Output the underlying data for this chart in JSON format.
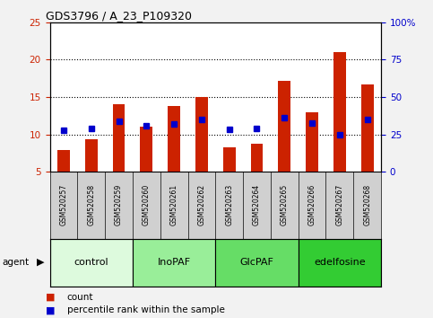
{
  "title": "GDS3796 / A_23_P109320",
  "samples": [
    "GSM520257",
    "GSM520258",
    "GSM520259",
    "GSM520260",
    "GSM520261",
    "GSM520262",
    "GSM520263",
    "GSM520264",
    "GSM520265",
    "GSM520266",
    "GSM520267",
    "GSM520268"
  ],
  "count_values": [
    7.9,
    9.4,
    14.0,
    11.0,
    13.8,
    15.0,
    8.3,
    8.7,
    17.2,
    12.9,
    21.0,
    16.7
  ],
  "percentile_values": [
    10.5,
    10.8,
    11.7,
    11.2,
    11.4,
    12.0,
    10.7,
    10.8,
    12.2,
    11.5,
    10.0,
    12.0
  ],
  "bar_bottom": 5.0,
  "ylim_left": [
    5,
    25
  ],
  "ylim_right": [
    0,
    100
  ],
  "yticks_left": [
    5,
    10,
    15,
    20,
    25
  ],
  "yticks_right": [
    0,
    25,
    50,
    75,
    100
  ],
  "ytick_labels_right": [
    "0",
    "25",
    "50",
    "75",
    "100%"
  ],
  "bar_color": "#cc2200",
  "dot_color": "#0000cc",
  "agent_groups": [
    {
      "label": "control",
      "start": 0,
      "end": 3,
      "color": "#ddfadd"
    },
    {
      "label": "InoPAF",
      "start": 3,
      "end": 6,
      "color": "#99ee99"
    },
    {
      "label": "GlcPAF",
      "start": 6,
      "end": 9,
      "color": "#66dd66"
    },
    {
      "label": "edelfosine",
      "start": 9,
      "end": 12,
      "color": "#33cc33"
    }
  ],
  "agent_label": "agent",
  "legend_count_label": "count",
  "legend_pct_label": "percentile rank within the sample",
  "tick_label_color_left": "#cc2200",
  "tick_label_color_right": "#0000cc",
  "sample_box_color": "#d0d0d0",
  "plot_bg_color": "#ffffff",
  "fig_bg_color": "#f2f2f2",
  "grid_yvals": [
    10,
    15,
    20
  ]
}
